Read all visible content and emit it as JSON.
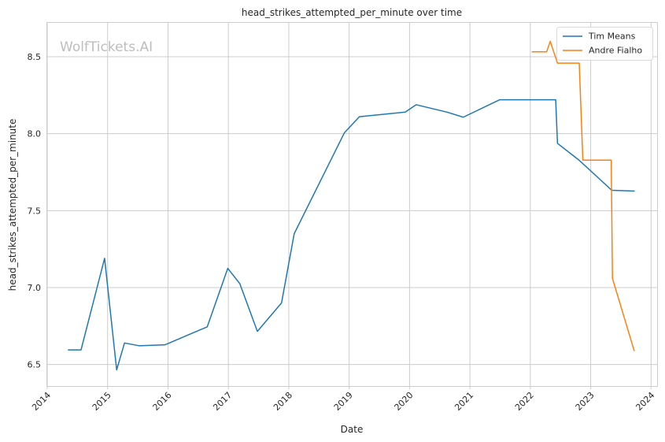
{
  "chart_data": {
    "type": "line",
    "title": "head_strikes_attempted_per_minute over time",
    "xlabel": "Date",
    "ylabel": "head_strikes_attempted_per_minute",
    "watermark": "WolfTickets.AI",
    "xlim": [
      2014.0,
      2024.1
    ],
    "ylim": [
      6.36,
      8.72
    ],
    "x_ticks": [
      2014,
      2015,
      2016,
      2017,
      2018,
      2019,
      2020,
      2021,
      2022,
      2023,
      2024
    ],
    "y_ticks": [
      6.5,
      7.0,
      7.5,
      8.0,
      8.5
    ],
    "y_tick_labels": [
      "6.5",
      "7.0",
      "7.5",
      "8.0",
      "8.5"
    ],
    "grid": true,
    "legend_position": "top-right",
    "series": [
      {
        "name": "Tim Means",
        "color": "#1f77b4",
        "points": [
          [
            2014.35,
            6.595
          ],
          [
            2014.56,
            6.595
          ],
          [
            2014.95,
            7.19
          ],
          [
            2015.15,
            6.465
          ],
          [
            2015.28,
            6.64
          ],
          [
            2015.52,
            6.622
          ],
          [
            2015.95,
            6.628
          ],
          [
            2016.65,
            6.745
          ],
          [
            2016.99,
            7.125
          ],
          [
            2017.19,
            7.025
          ],
          [
            2017.48,
            6.715
          ],
          [
            2017.88,
            6.9
          ],
          [
            2018.09,
            7.35
          ],
          [
            2018.92,
            8.005
          ],
          [
            2019.17,
            8.11
          ],
          [
            2019.93,
            8.14
          ],
          [
            2020.11,
            8.188
          ],
          [
            2020.62,
            8.14
          ],
          [
            2020.89,
            8.107
          ],
          [
            2021.49,
            8.22
          ],
          [
            2022.42,
            8.22
          ],
          [
            2022.45,
            7.937
          ],
          [
            2022.8,
            7.83
          ],
          [
            2023.35,
            7.632
          ],
          [
            2023.72,
            7.627
          ]
        ]
      },
      {
        "name": "Andre Fialho",
        "color": "#ff7f0e",
        "points": [
          [
            2022.03,
            8.532
          ],
          [
            2022.27,
            8.532
          ],
          [
            2022.33,
            8.6
          ],
          [
            2022.45,
            8.458
          ],
          [
            2022.81,
            8.458
          ],
          [
            2022.87,
            7.828
          ],
          [
            2023.34,
            7.828
          ],
          [
            2023.36,
            7.06
          ],
          [
            2023.72,
            6.59
          ]
        ]
      }
    ]
  }
}
